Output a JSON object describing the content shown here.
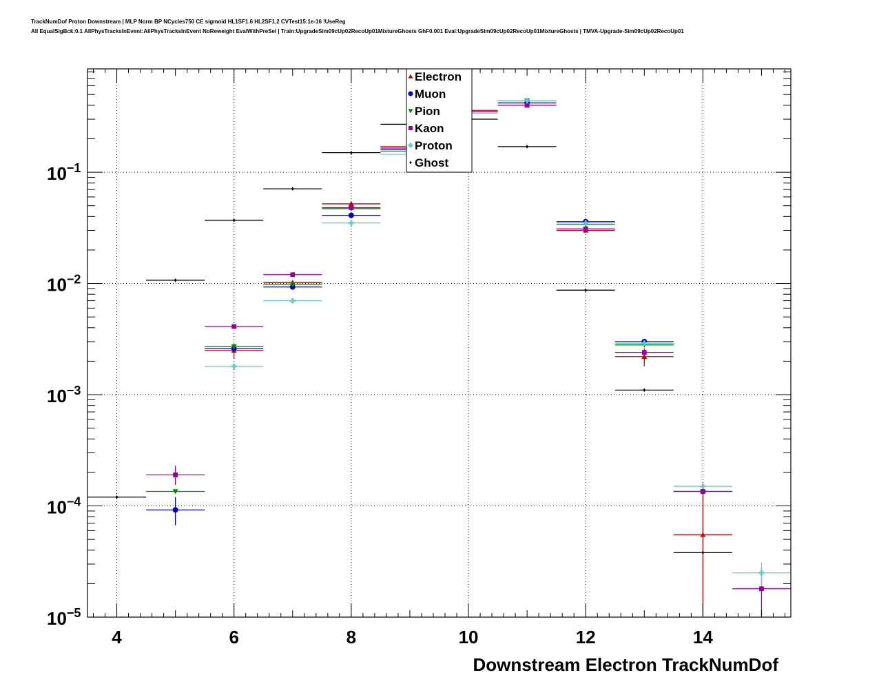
{
  "title_line1": "TrackNumDof Proton Downstream | MLP Norm BP NCycles750 CE sigmoid HL1SF1.6 HL2SF1.2 CVTest15:1e-16 !UseReg",
  "title_line2": "All EqualSigBck:0.1 AllPhysTracksInEvent:AllPhysTracksInEvent NoReweight EvalWithPreSel | Train:UpgradeSim09cUp02RecoUp01MixtureGhosts GhF0.001 Eval:UpgradeSim09cUp02RecoUp01MixtureGhosts | TMVA-Upgrade-Sim09cUp02RecoUp01",
  "chart_data": {
    "type": "scatter",
    "xlabel": "Downstream Electron TrackNumDof",
    "ylabel": "",
    "xlim": [
      3.5,
      15.5
    ],
    "ylim": [
      1e-05,
      0.85
    ],
    "y_scale": "log",
    "grid": true,
    "legend_position": "top-center",
    "x_ticks": [
      4,
      6,
      8,
      10,
      12,
      14
    ],
    "y_ticks": [
      {
        "value": 0.1,
        "base": "10",
        "exp": "−1"
      },
      {
        "value": 0.01,
        "base": "10",
        "exp": "−2"
      },
      {
        "value": 0.001,
        "base": "10",
        "exp": "−3"
      },
      {
        "value": 0.0001,
        "base": "10",
        "exp": "−4"
      },
      {
        "value": 1e-05,
        "base": "10",
        "exp": "−5"
      }
    ],
    "series": [
      {
        "name": "Electron",
        "color": "#cc0000",
        "marker": "triangle-up",
        "points": [
          {
            "x": 6,
            "y": 0.0025,
            "lo": 0.0021,
            "hi": 0.0029
          },
          {
            "x": 7,
            "y": 0.0102
          },
          {
            "x": 8,
            "y": 0.052
          },
          {
            "x": 9,
            "y": 0.17
          },
          {
            "x": 10,
            "y": 0.36
          },
          {
            "x": 11,
            "y": 0.4
          },
          {
            "x": 12,
            "y": 0.03
          },
          {
            "x": 13,
            "y": 0.0022,
            "lo": 0.0018,
            "hi": 0.0026
          },
          {
            "x": 14,
            "y": 5.5e-05,
            "lo": 1e-05,
            "hi": 0.00014
          }
        ]
      },
      {
        "name": "Muon",
        "color": "#0000cc",
        "marker": "circle",
        "points": [
          {
            "x": 5,
            "y": 9.2e-05,
            "lo": 6.7e-05,
            "hi": 0.00012
          },
          {
            "x": 6,
            "y": 0.0026
          },
          {
            "x": 7,
            "y": 0.0093
          },
          {
            "x": 8,
            "y": 0.041
          },
          {
            "x": 9,
            "y": 0.16
          },
          {
            "x": 10,
            "y": 0.35
          },
          {
            "x": 11,
            "y": 0.42
          },
          {
            "x": 12,
            "y": 0.036
          },
          {
            "x": 13,
            "y": 0.003
          },
          {
            "x": 14,
            "y": 0.000135
          }
        ]
      },
      {
        "name": "Pion",
        "color": "#008800",
        "marker": "triangle-down",
        "points": [
          {
            "x": 5,
            "y": 0.000135
          },
          {
            "x": 6,
            "y": 0.0027
          },
          {
            "x": 7,
            "y": 0.0098
          },
          {
            "x": 8,
            "y": 0.047
          },
          {
            "x": 9,
            "y": 0.155
          },
          {
            "x": 10,
            "y": 0.35
          },
          {
            "x": 11,
            "y": 0.44
          },
          {
            "x": 12,
            "y": 0.034
          },
          {
            "x": 13,
            "y": 0.0028
          }
        ]
      },
      {
        "name": "Kaon",
        "color": "#990099",
        "marker": "square",
        "points": [
          {
            "x": 5,
            "y": 0.00019,
            "lo": 0.000155,
            "hi": 0.00023
          },
          {
            "x": 6,
            "y": 0.0041
          },
          {
            "x": 7,
            "y": 0.012
          },
          {
            "x": 8,
            "y": 0.048
          },
          {
            "x": 9,
            "y": 0.165
          },
          {
            "x": 10,
            "y": 0.35
          },
          {
            "x": 11,
            "y": 0.4
          },
          {
            "x": 12,
            "y": 0.031
          },
          {
            "x": 13,
            "y": 0.0024
          },
          {
            "x": 14,
            "y": 0.000135
          },
          {
            "x": 15,
            "y": 1.8e-05,
            "lo": 1e-05,
            "hi": 2.8e-05
          }
        ]
      },
      {
        "name": "Proton",
        "color": "#66cccc",
        "marker": "cross",
        "points": [
          {
            "x": 6,
            "y": 0.0018
          },
          {
            "x": 7,
            "y": 0.007
          },
          {
            "x": 8,
            "y": 0.035
          },
          {
            "x": 9,
            "y": 0.145
          },
          {
            "x": 10,
            "y": 0.34
          },
          {
            "x": 11,
            "y": 0.44
          },
          {
            "x": 12,
            "y": 0.035
          },
          {
            "x": 13,
            "y": 0.0029
          },
          {
            "x": 14,
            "y": 0.00015
          },
          {
            "x": 15,
            "y": 2.5e-05,
            "lo": 1.9e-05,
            "hi": 3.1e-05
          }
        ]
      },
      {
        "name": "Ghost",
        "color": "#000000",
        "marker": "diamond",
        "points": [
          {
            "x": 4,
            "y": 0.00012
          },
          {
            "x": 5,
            "y": 0.0107
          },
          {
            "x": 6,
            "y": 0.037
          },
          {
            "x": 7,
            "y": 0.071
          },
          {
            "x": 8,
            "y": 0.15
          },
          {
            "x": 9,
            "y": 0.27
          },
          {
            "x": 10,
            "y": 0.3
          },
          {
            "x": 11,
            "y": 0.17
          },
          {
            "x": 12,
            "y": 0.0087
          },
          {
            "x": 13,
            "y": 0.0011
          },
          {
            "x": 14,
            "y": 3.8e-05
          }
        ]
      }
    ]
  }
}
